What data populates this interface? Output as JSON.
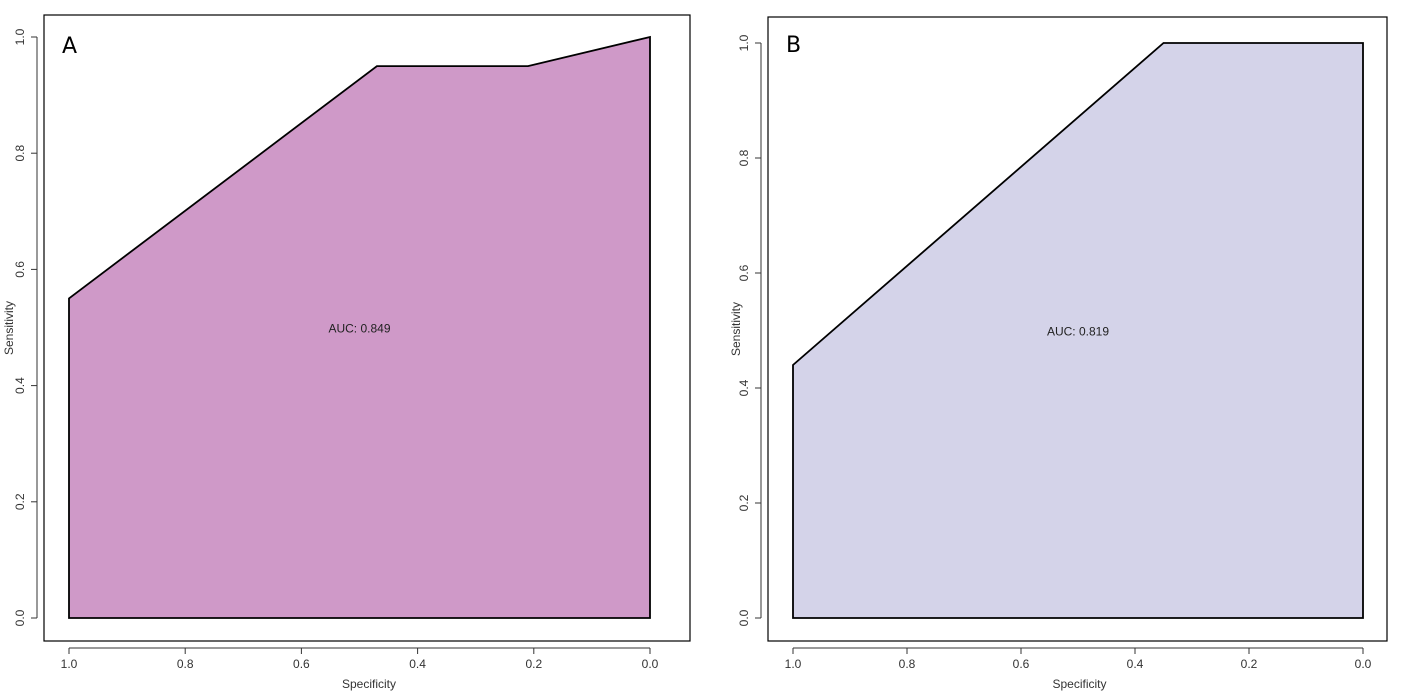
{
  "chart_data": [
    {
      "type": "area",
      "panel_label": "A",
      "xlabel": "Specificity",
      "ylabel": "Sensitivity",
      "xlim": [
        1.0,
        0.0
      ],
      "ylim": [
        0.0,
        1.0
      ],
      "x_reversed": true,
      "xticks": [
        "1.0",
        "0.8",
        "0.6",
        "0.4",
        "0.2",
        "0.0"
      ],
      "yticks": [
        "0.0",
        "0.2",
        "0.4",
        "0.6",
        "0.8",
        "1.0"
      ],
      "curve": {
        "specificity": [
          1.0,
          1.0,
          0.47,
          0.21,
          0.0,
          0.0
        ],
        "sensitivity": [
          0.0,
          0.55,
          0.95,
          0.95,
          1.0,
          0.0
        ]
      },
      "annotation": {
        "text": "AUC: 0.849",
        "x": 0.5,
        "y": 0.5
      },
      "fill_color": "#cf99c8",
      "line_color": "#000000"
    },
    {
      "type": "area",
      "panel_label": "B",
      "xlabel": "Specificity",
      "ylabel": "Sensitivity",
      "xlim": [
        1.0,
        0.0
      ],
      "ylim": [
        0.0,
        1.0
      ],
      "x_reversed": true,
      "xticks": [
        "1.0",
        "0.8",
        "0.6",
        "0.4",
        "0.2",
        "0.0"
      ],
      "yticks": [
        "0.0",
        "0.2",
        "0.4",
        "0.6",
        "0.8",
        "1.0"
      ],
      "curve": {
        "specificity": [
          1.0,
          1.0,
          0.35,
          0.0,
          0.0
        ],
        "sensitivity": [
          0.0,
          0.44,
          1.0,
          1.0,
          0.0
        ]
      },
      "annotation": {
        "text": "AUC: 0.819",
        "x": 0.5,
        "y": 0.5
      },
      "fill_color": "#d4d3e9",
      "line_color": "#000000"
    }
  ]
}
